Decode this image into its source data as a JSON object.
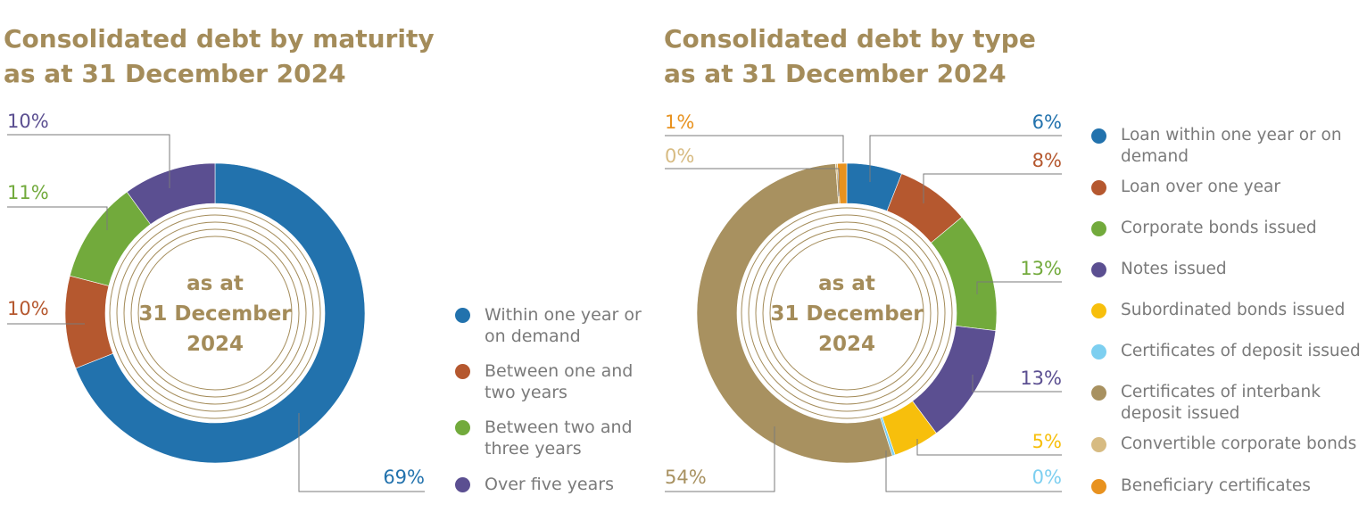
{
  "charts": {
    "maturity": {
      "title_line1": "Consolidated debt by maturity",
      "title_line2": "as at 31 December 2024"
    },
    "type": {
      "title_line1": "Consolidated debt by type",
      "title_line2": "as at 31 December 2024"
    }
  },
  "center_label": {
    "line1": "as at",
    "line2": "31 December",
    "line3": "2024"
  },
  "chart_data": [
    {
      "type": "pie",
      "title": "Consolidated debt by maturity as at 31 December 2024",
      "categories": [
        "Within one year or on demand",
        "Between one and two years",
        "Between two and three years",
        "Over five years"
      ],
      "values": [
        69,
        10,
        11,
        10
      ],
      "labels": [
        "69%",
        "10%",
        "11%",
        "10%"
      ],
      "colors": [
        "#2272ad",
        "#b5582f",
        "#72aa3c",
        "#5b4f91"
      ],
      "legend": "right"
    },
    {
      "type": "pie",
      "title": "Consolidated debt by type as at 31 December 2024",
      "categories": [
        "Loan within one year or on demand",
        "Loan over one year",
        "Corporate bonds issued",
        "Notes issued",
        "Subordinated bonds issued",
        "Certificates of deposit issued",
        "Certificates of interbank deposit issued",
        "Convertible corporate bonds",
        "Beneficiary certificates"
      ],
      "values": [
        6,
        8,
        13,
        13,
        5,
        0.3,
        54,
        0.2,
        1
      ],
      "labels": [
        "6%",
        "8%",
        "13%",
        "13%",
        "5%",
        "0%",
        "54%",
        "0%",
        "1%"
      ],
      "colors": [
        "#2272ad",
        "#b5582f",
        "#72aa3c",
        "#5b4f91",
        "#f7bf0c",
        "#7dcff0",
        "#a89160",
        "#d7bb82",
        "#e8921f"
      ],
      "legend": "right"
    }
  ]
}
